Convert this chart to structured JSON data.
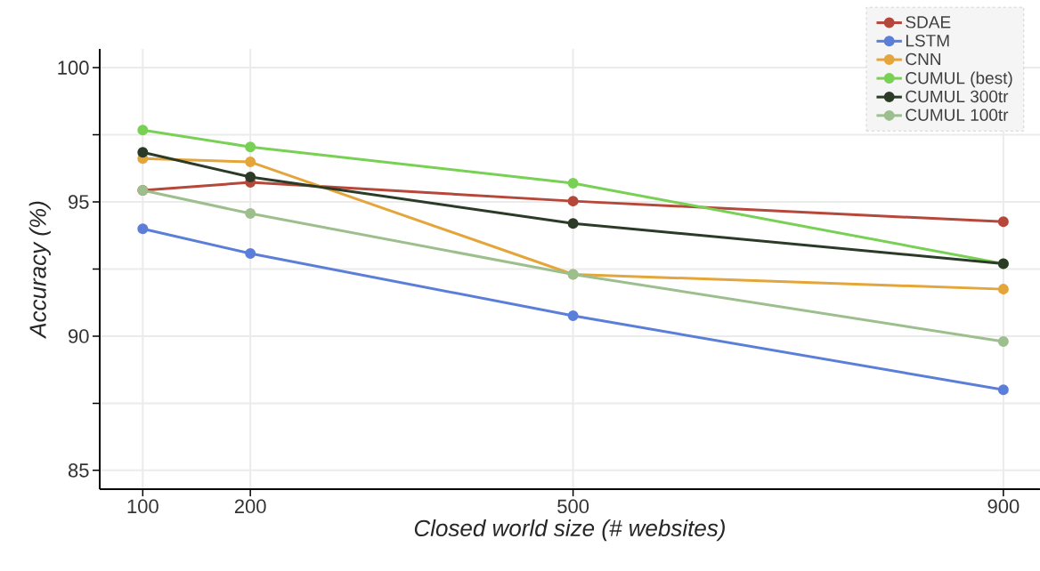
{
  "chart_data": {
    "type": "line",
    "xlabel": "Closed world size (# websites)",
    "ylabel": "Accuracy (%)",
    "x": [
      100,
      200,
      500,
      900
    ],
    "xlim": [
      60,
      934
    ],
    "xticks": [
      100,
      200,
      500,
      900
    ],
    "ylim": [
      84.3,
      100.7
    ],
    "yticks": [
      85,
      {
        "value": 87.5,
        "label": null
      },
      90,
      {
        "value": 92.5,
        "label": null
      },
      95,
      {
        "value": 97.5,
        "label": null
      },
      100
    ],
    "grid": true,
    "legend": "top right",
    "marker": "circle",
    "line_style": "solid",
    "series": [
      {
        "name": "SDAE",
        "color": "#b5483a",
        "values": [
          95.43,
          95.73,
          95.03,
          94.26
        ]
      },
      {
        "name": "LSTM",
        "color": "#5b7fd9",
        "values": [
          94.0,
          93.08,
          90.76,
          88.0
        ]
      },
      {
        "name": "CNN",
        "color": "#e4a53a",
        "values": [
          96.62,
          96.49,
          92.3,
          91.75
        ]
      },
      {
        "name": "CUMUL (best)",
        "color": "#78d054",
        "values": [
          97.68,
          97.05,
          95.7,
          92.7
        ]
      },
      {
        "name": "CUMUL 300tr",
        "color": "#2c3b27",
        "values": [
          96.85,
          95.93,
          94.2,
          92.7
        ]
      },
      {
        "name": "CUMUL 100tr",
        "color": "#9dbf8e",
        "values": [
          95.43,
          94.57,
          92.3,
          89.8
        ]
      }
    ]
  }
}
